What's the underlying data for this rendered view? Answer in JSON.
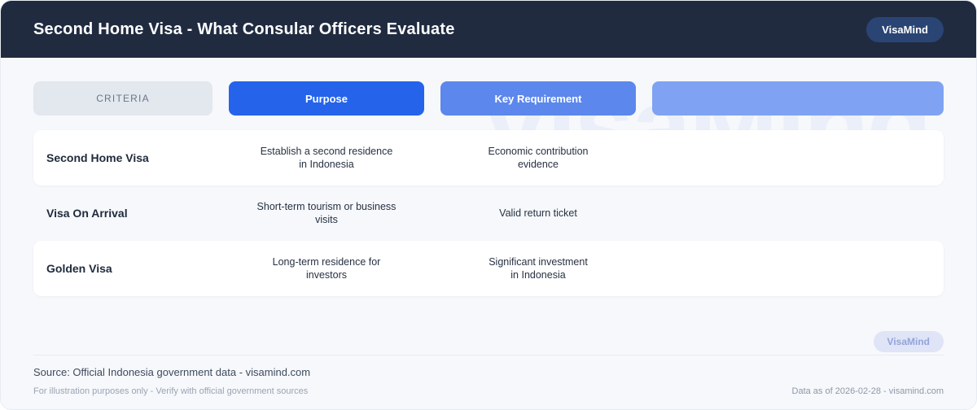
{
  "header": {
    "title": "Second Home Visa - What Consular Officers Evaluate",
    "brand_badge": "VisaMind"
  },
  "watermark_text": "VisaMind",
  "table": {
    "columns": [
      {
        "label": "CRITERIA"
      },
      {
        "label": "Purpose"
      },
      {
        "label": "Key Requirement"
      },
      {
        "label": ""
      }
    ],
    "rows": [
      {
        "criteria": "Second Home Visa",
        "purpose": "Establish a second residence\nin Indonesia",
        "requirement": "Economic contribution\nevidence"
      },
      {
        "criteria": "Visa On Arrival",
        "purpose": "Short-term tourism or business\nvisits",
        "requirement": "Valid return ticket"
      },
      {
        "criteria": "Golden Visa",
        "purpose": "Long-term residence for\ninvestors",
        "requirement": "Significant investment\nin Indonesia"
      }
    ]
  },
  "footer": {
    "badge": "VisaMind",
    "source": "Source: Official Indonesia government data - visamind.com",
    "disclaimer": "For illustration purposes only - Verify with official government sources",
    "data_as_of": "Data as of 2026-02-28 - visamind.com"
  },
  "colors": {
    "topbar_bg": "#202b40",
    "brand_pill_bg": "#2a4574",
    "primary_blue": "#2563eb",
    "secondary_blue": "#5c87ec",
    "tertiary_blue": "#7fa3f2",
    "criteria_chip_bg": "#e3e8ef",
    "page_bg": "#f6f8fb",
    "footer_pill_bg": "#dfe4f6",
    "footer_pill_text": "#94a4da"
  }
}
